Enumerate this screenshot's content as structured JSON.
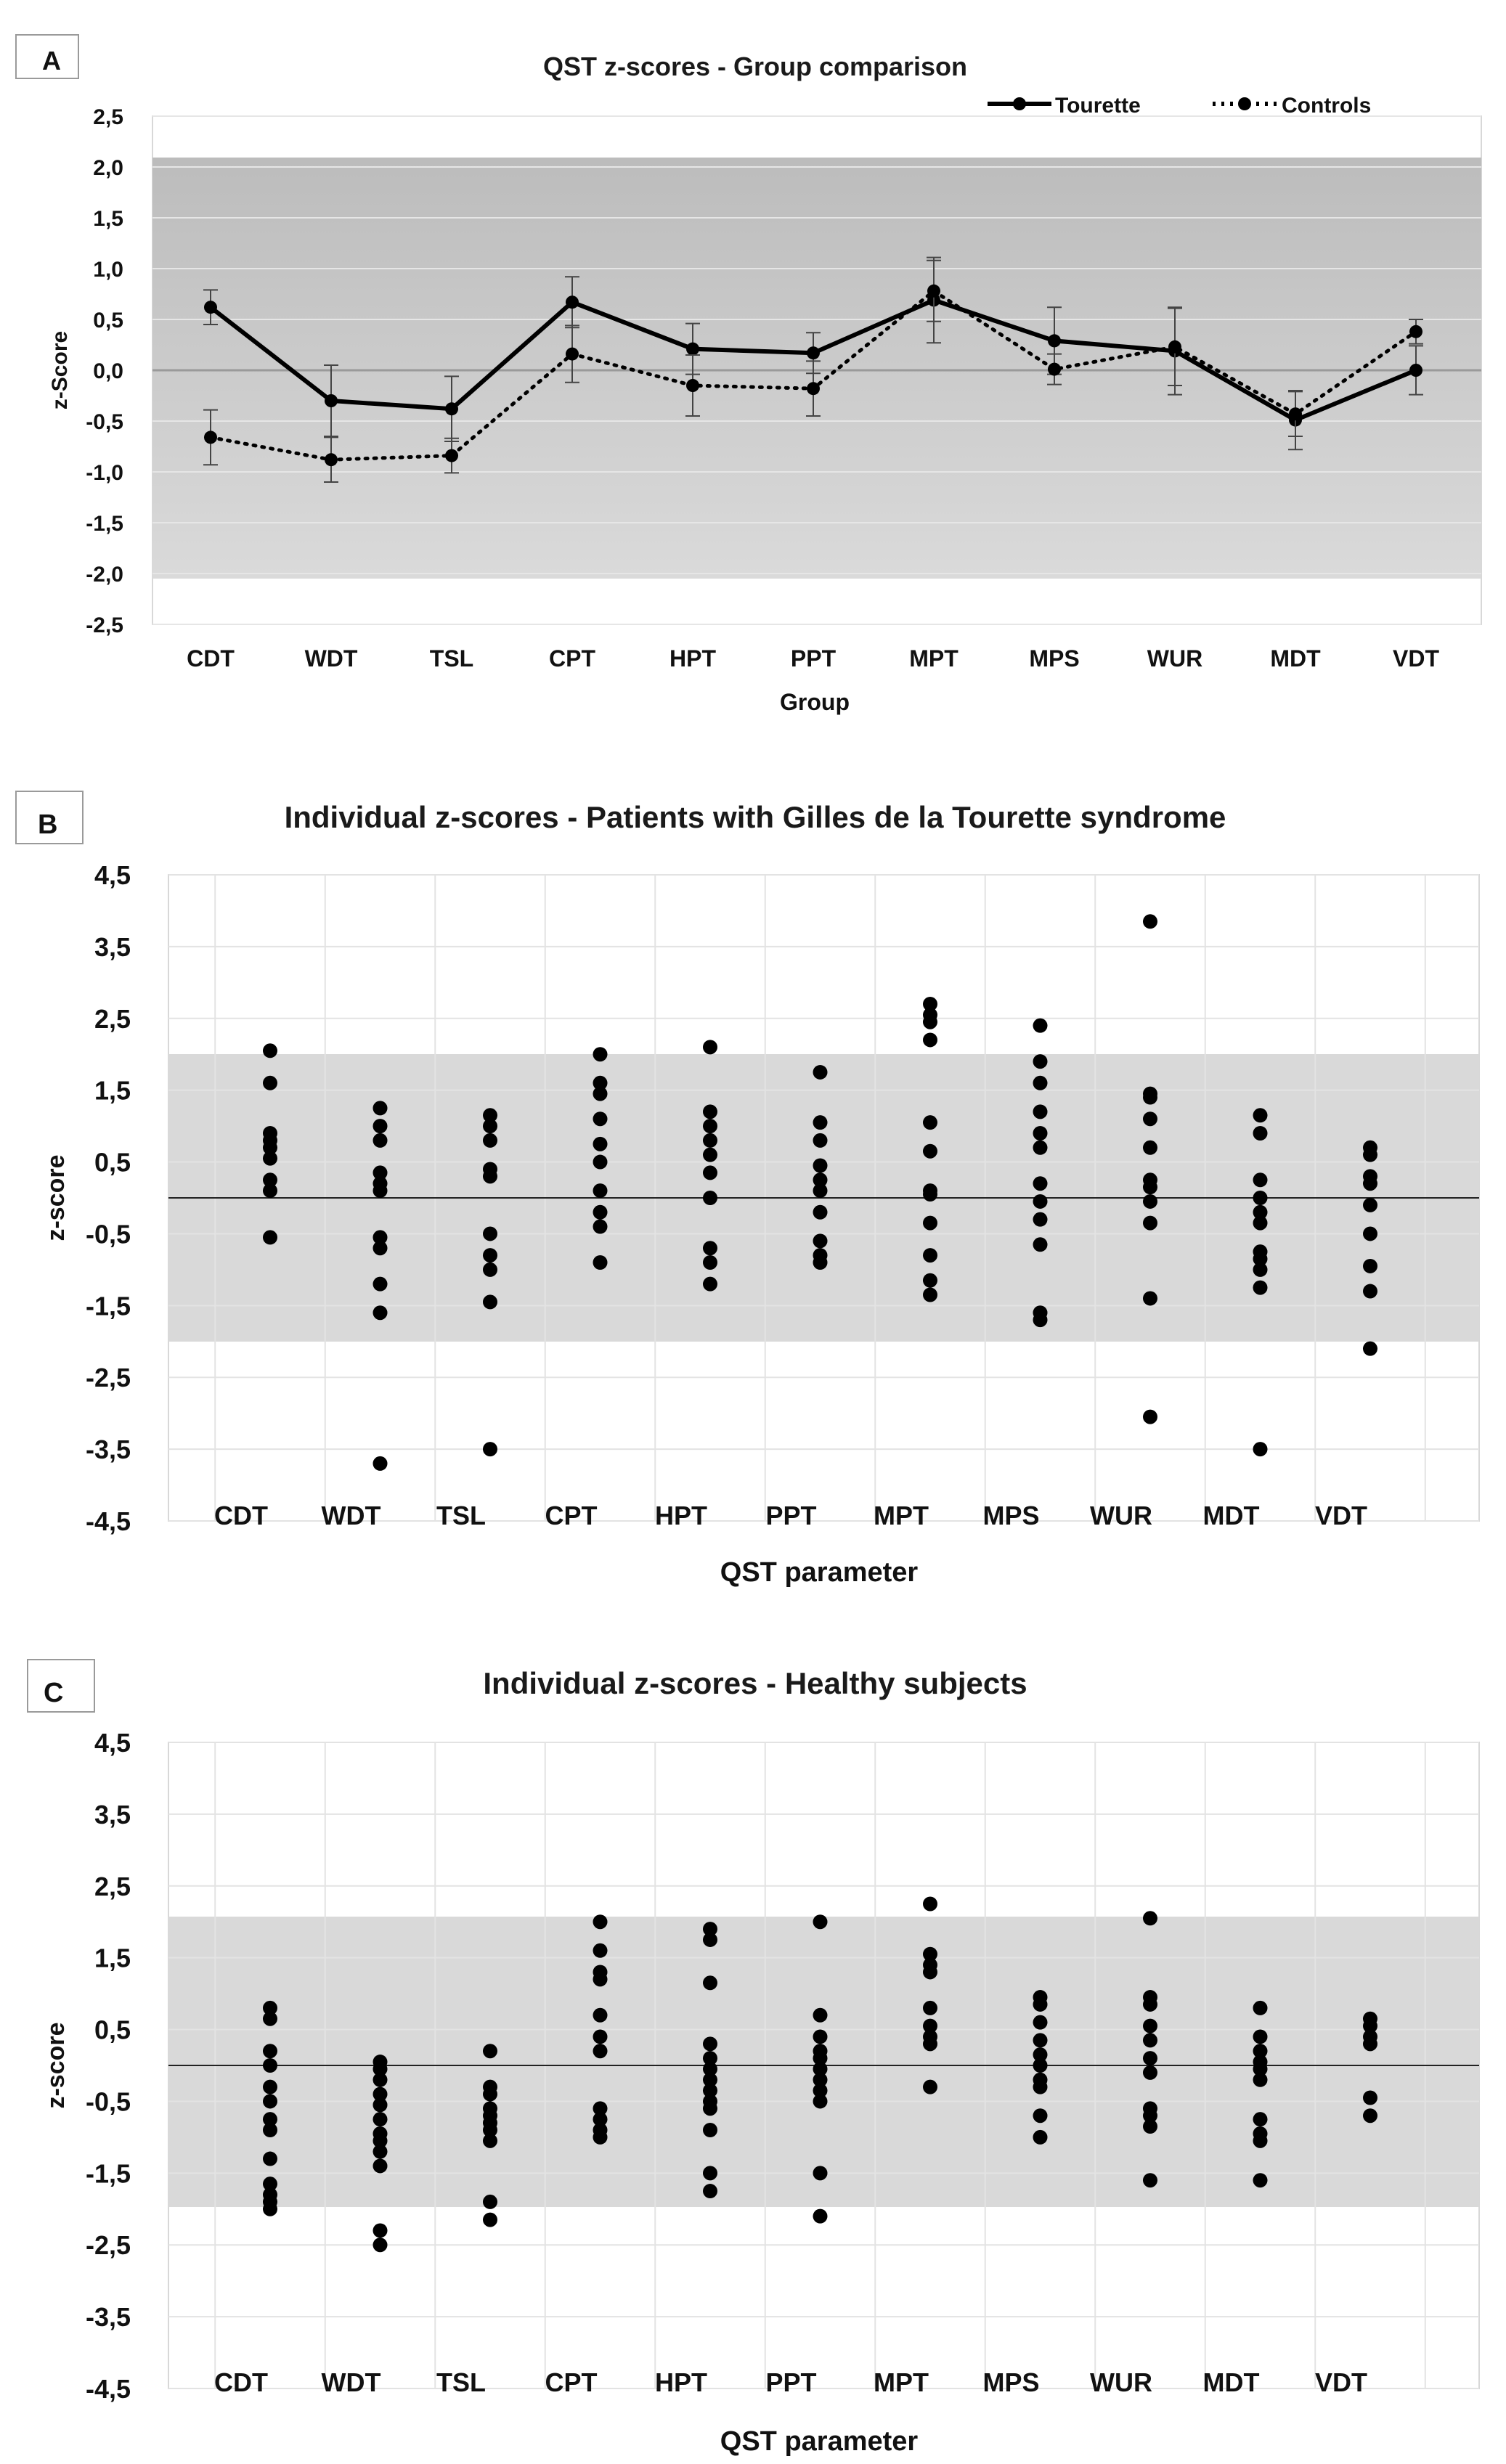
{
  "chart_data": [
    {
      "panel": "A",
      "type": "line",
      "title": "QST z-scores - Group comparison",
      "xlabel": "Group",
      "ylabel": "z-Score",
      "categories": [
        "CDT",
        "WDT",
        "TSL",
        "CPT",
        "HPT",
        "PPT",
        "MPT",
        "MPS",
        "WUR",
        "MDT",
        "VDT"
      ],
      "ylim": [
        -2.5,
        2.5
      ],
      "yticks": [
        "2,5",
        "2,0",
        "1,5",
        "1,0",
        "0,5",
        "0,0",
        "-0,5",
        "-1,0",
        "-1,5",
        "-2,0",
        "-2,5"
      ],
      "normal_range": [
        -2,
        2
      ],
      "legend_position": "top-right",
      "series": [
        {
          "name": "Tourette",
          "style": "solid",
          "values": [
            0.62,
            -0.3,
            -0.38,
            0.67,
            0.21,
            0.17,
            0.69,
            0.29,
            0.19,
            -0.49,
            0.0
          ],
          "err": [
            0.17,
            0.35,
            0.32,
            0.25,
            0.25,
            0.2,
            0.42,
            0.33,
            0.43,
            0.29,
            0.24
          ]
        },
        {
          "name": "Controls",
          "style": "dotted",
          "values": [
            -0.66,
            -0.88,
            -0.84,
            0.16,
            -0.15,
            -0.18,
            0.78,
            0.01,
            0.23,
            -0.43,
            0.38
          ],
          "err": [
            0.27,
            0.22,
            0.17,
            0.28,
            0.3,
            0.27,
            0.3,
            0.15,
            0.38,
            0.22,
            0.12
          ]
        }
      ]
    },
    {
      "panel": "B",
      "type": "scatter",
      "title": "Individual z-scores - Patients with Gilles de la Tourette syndrome",
      "xlabel": "QST parameter",
      "ylabel": "z-score",
      "ylim": [
        -4.5,
        4.5
      ],
      "yticks": [
        "4,5",
        "3,5",
        "2,5",
        "1,5",
        "0,5",
        "-0,5",
        "-1,5",
        "-2,5",
        "-3,5",
        "-4,5"
      ],
      "normal_range": [
        -2,
        2
      ],
      "categories": [
        "CDT",
        "WDT",
        "TSL",
        "CPT",
        "HPT",
        "PPT",
        "MPT",
        "MPS",
        "WUR",
        "MDT",
        "VDT"
      ],
      "values": [
        [
          2.05,
          1.6,
          0.9,
          0.8,
          0.7,
          0.55,
          0.25,
          0.1,
          -0.55
        ],
        [
          1.25,
          1.0,
          0.8,
          0.35,
          0.2,
          0.1,
          -0.55,
          -0.7,
          -1.2,
          -1.6,
          -3.7
        ],
        [
          1.15,
          1.0,
          0.8,
          0.4,
          0.3,
          -0.5,
          -0.8,
          -1.0,
          -1.45,
          -3.5
        ],
        [
          2.0,
          1.6,
          1.45,
          1.1,
          0.75,
          0.5,
          0.1,
          -0.2,
          -0.4,
          -0.9
        ],
        [
          2.1,
          1.2,
          1.0,
          0.8,
          0.6,
          0.35,
          0.0,
          -0.7,
          -0.9,
          -1.2
        ],
        [
          1.75,
          1.05,
          0.8,
          0.45,
          0.25,
          0.1,
          -0.2,
          -0.6,
          -0.8,
          -0.9
        ],
        [
          2.7,
          2.55,
          2.45,
          2.2,
          1.05,
          0.65,
          0.1,
          0.05,
          -0.35,
          -0.8,
          -1.15,
          -1.35
        ],
        [
          2.4,
          1.9,
          1.6,
          1.2,
          0.9,
          0.7,
          0.2,
          -0.05,
          -0.3,
          -0.65,
          -1.6,
          -1.7
        ],
        [
          3.85,
          1.45,
          1.4,
          1.1,
          0.7,
          0.25,
          0.15,
          -0.05,
          -0.35,
          -1.4,
          -3.05
        ],
        [
          1.15,
          0.9,
          0.25,
          0.0,
          -0.2,
          -0.35,
          -0.75,
          -0.85,
          -1.0,
          -1.25,
          -3.5
        ],
        [
          0.7,
          0.6,
          0.3,
          0.2,
          -0.1,
          -0.5,
          -0.95,
          -1.3,
          -2.1
        ]
      ]
    },
    {
      "panel": "C",
      "type": "scatter",
      "title": "Individual z-scores - Healthy subjects",
      "xlabel": "QST parameter",
      "ylabel": "z-score",
      "ylim": [
        -4.5,
        4.5
      ],
      "yticks": [
        "4,5",
        "3,5",
        "2,5",
        "1,5",
        "0,5",
        "-0,5",
        "-1,5",
        "-2,5",
        "-3,5",
        "-4,5"
      ],
      "normal_range": [
        -2,
        2
      ],
      "categories": [
        "CDT",
        "WDT",
        "TSL",
        "CPT",
        "HPT",
        "PPT",
        "MPT",
        "MPS",
        "WUR",
        "MDT",
        "VDT"
      ],
      "values": [
        [
          0.8,
          0.65,
          0.2,
          0.0,
          -0.3,
          -0.5,
          -0.75,
          -0.9,
          -1.3,
          -1.65,
          -1.8,
          -1.9,
          -2.0
        ],
        [
          0.05,
          -0.05,
          -0.2,
          -0.4,
          -0.55,
          -0.75,
          -0.95,
          -1.05,
          -1.2,
          -1.4,
          -2.3,
          -2.5
        ],
        [
          0.2,
          -0.3,
          -0.4,
          -0.6,
          -0.7,
          -0.8,
          -0.9,
          -1.05,
          -1.9,
          -2.15
        ],
        [
          2.0,
          1.6,
          1.3,
          1.2,
          0.7,
          0.4,
          0.2,
          -0.6,
          -0.75,
          -0.9,
          -1.0
        ],
        [
          1.9,
          1.75,
          1.15,
          0.3,
          0.1,
          -0.05,
          -0.2,
          -0.35,
          -0.5,
          -0.6,
          -0.9,
          -1.5,
          -1.75
        ],
        [
          2.0,
          0.7,
          0.4,
          0.2,
          0.1,
          -0.05,
          -0.2,
          -0.35,
          -0.5,
          -1.5,
          -2.1
        ],
        [
          2.25,
          1.55,
          1.4,
          1.3,
          0.8,
          0.55,
          0.4,
          0.3,
          -0.3
        ],
        [
          0.95,
          0.85,
          0.6,
          0.35,
          0.15,
          0.0,
          -0.2,
          -0.3,
          -0.7,
          -1.0
        ],
        [
          2.05,
          0.95,
          0.85,
          0.55,
          0.35,
          0.1,
          -0.1,
          -0.6,
          -0.7,
          -0.85,
          -1.6
        ],
        [
          0.8,
          0.4,
          0.2,
          0.05,
          -0.05,
          -0.2,
          -0.75,
          -0.95,
          -1.05,
          -1.6
        ],
        [
          0.65,
          0.55,
          0.4,
          0.3,
          -0.45,
          -0.7
        ]
      ]
    }
  ]
}
